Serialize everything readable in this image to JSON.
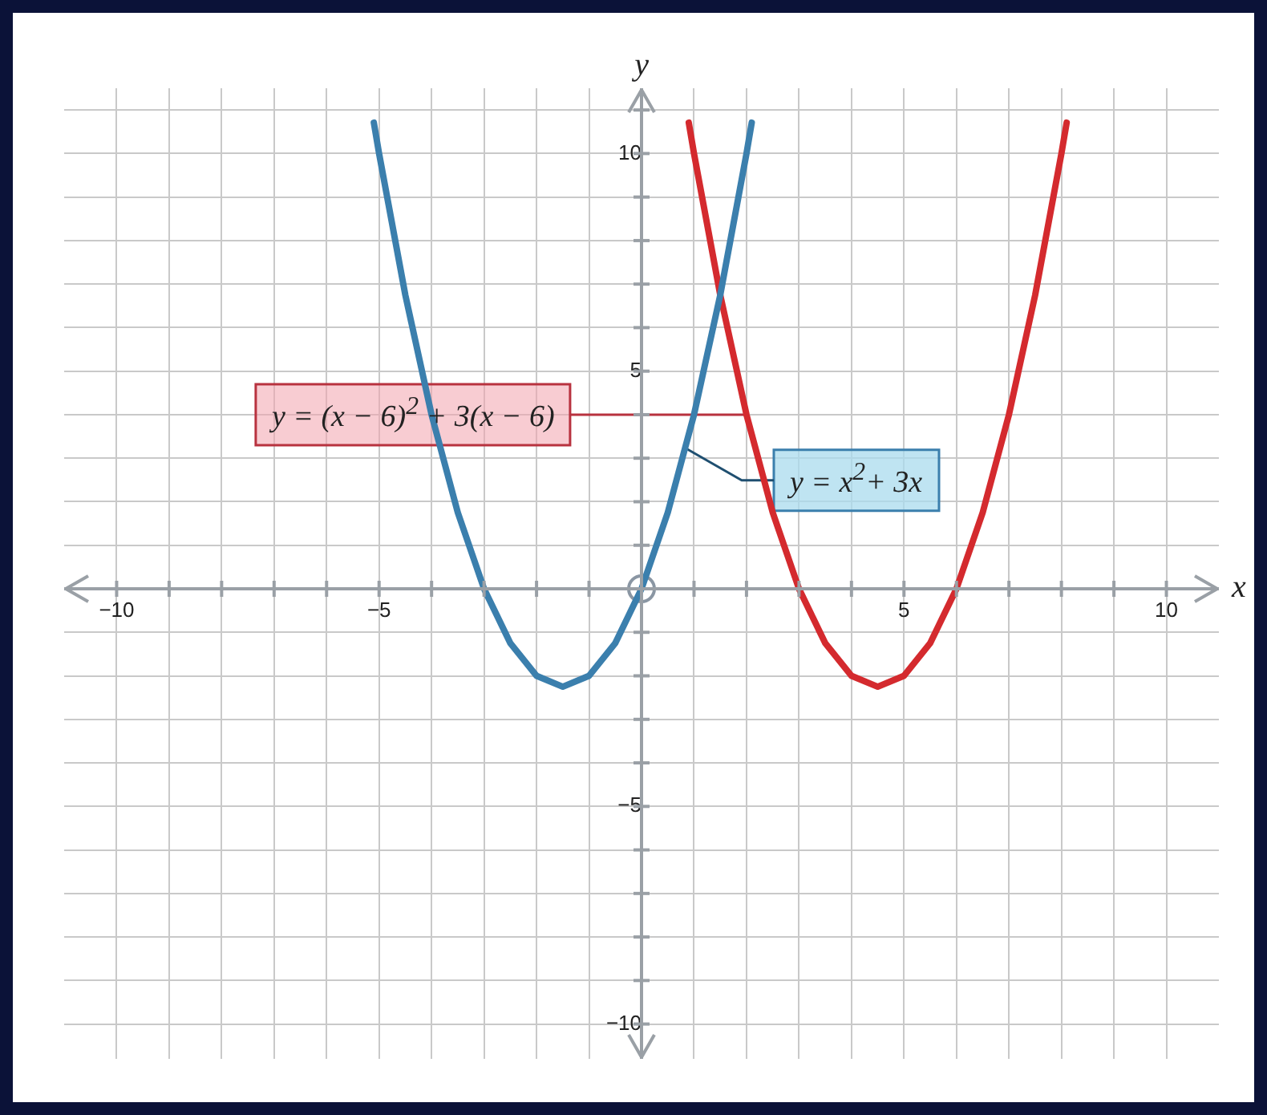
{
  "chart_data": {
    "type": "line",
    "xlabel": "x",
    "ylabel": "y",
    "xlim": [
      -11,
      11
    ],
    "ylim": [
      -10.8,
      11.5
    ],
    "xticks": [
      {
        "value": -10,
        "label": "−10"
      },
      {
        "value": -9,
        "label": null
      },
      {
        "value": -8,
        "label": null
      },
      {
        "value": -7,
        "label": null
      },
      {
        "value": -6,
        "label": null
      },
      {
        "value": -5,
        "label": "−5"
      },
      {
        "value": -4,
        "label": null
      },
      {
        "value": -3,
        "label": null
      },
      {
        "value": -2,
        "label": null
      },
      {
        "value": -1,
        "label": null
      },
      {
        "value": 0,
        "label": null
      },
      {
        "value": 1,
        "label": null
      },
      {
        "value": 2,
        "label": null
      },
      {
        "value": 3,
        "label": null
      },
      {
        "value": 4,
        "label": null
      },
      5,
      {
        "value": 6,
        "label": null
      },
      {
        "value": 7,
        "label": null
      },
      {
        "value": 8,
        "label": null
      },
      {
        "value": 9,
        "label": null
      },
      10
    ],
    "yticks": [
      {
        "value": -10,
        "label": "−10"
      },
      {
        "value": -9,
        "label": null
      },
      {
        "value": -8,
        "label": null
      },
      {
        "value": -7,
        "label": null
      },
      {
        "value": -6,
        "label": null
      },
      {
        "value": -5,
        "label": "−5"
      },
      {
        "value": -4,
        "label": null
      },
      {
        "value": -3,
        "label": null
      },
      {
        "value": -2,
        "label": null
      },
      {
        "value": -1,
        "label": null
      },
      {
        "value": 0,
        "label": null
      },
      {
        "value": 1,
        "label": null
      },
      {
        "value": 2,
        "label": null
      },
      {
        "value": 3,
        "label": null
      },
      {
        "value": 4,
        "label": null
      },
      5,
      {
        "value": 6,
        "label": null
      },
      {
        "value": 7,
        "label": null
      },
      {
        "value": 8,
        "label": null
      },
      {
        "value": 9,
        "label": null
      },
      10,
      {
        "value": 11,
        "label": null
      }
    ],
    "grid": true,
    "legend": false,
    "marker": "none",
    "line_style": "solid",
    "series": [
      {
        "color": "#3b7fad",
        "x": [
          -5.1,
          -5,
          -4.5,
          -4,
          -3.5,
          -3,
          -2.5,
          -2,
          -1.5,
          -1,
          -0.5,
          0,
          0.5,
          1,
          1.5,
          2,
          2.1
        ],
        "values": [
          10.71,
          10,
          6.75,
          4,
          1.75,
          0,
          -1.25,
          -2,
          -2.25,
          -2,
          -1.25,
          0,
          1.75,
          4,
          6.75,
          10,
          10.71
        ]
      },
      {
        "color": "#d42a2e",
        "x": [
          0.9,
          1,
          1.5,
          2,
          2.5,
          3,
          3.5,
          4,
          4.5,
          5,
          5.5,
          6,
          6.5,
          7,
          7.5,
          8,
          8.1
        ],
        "values": [
          10.71,
          10,
          6.75,
          4,
          1.75,
          0,
          -1.25,
          -2,
          -2.25,
          -2,
          -1.25,
          0,
          1.75,
          4,
          6.75,
          10,
          10.71
        ]
      },
      {
        "type": "scatter",
        "marker": "circle",
        "color": "#8a96a3",
        "x": [
          0
        ],
        "values": [
          0
        ]
      }
    ],
    "annotations": [
      {
        "text": "y = (x − 6)$^{2}$ + 3(x − 6)",
        "x": 2,
        "y": 4
      },
      {
        "text": "y = x$^{2}$+ 3x",
        "x": 0.84,
        "y": 3.23
      }
    ]
  }
}
